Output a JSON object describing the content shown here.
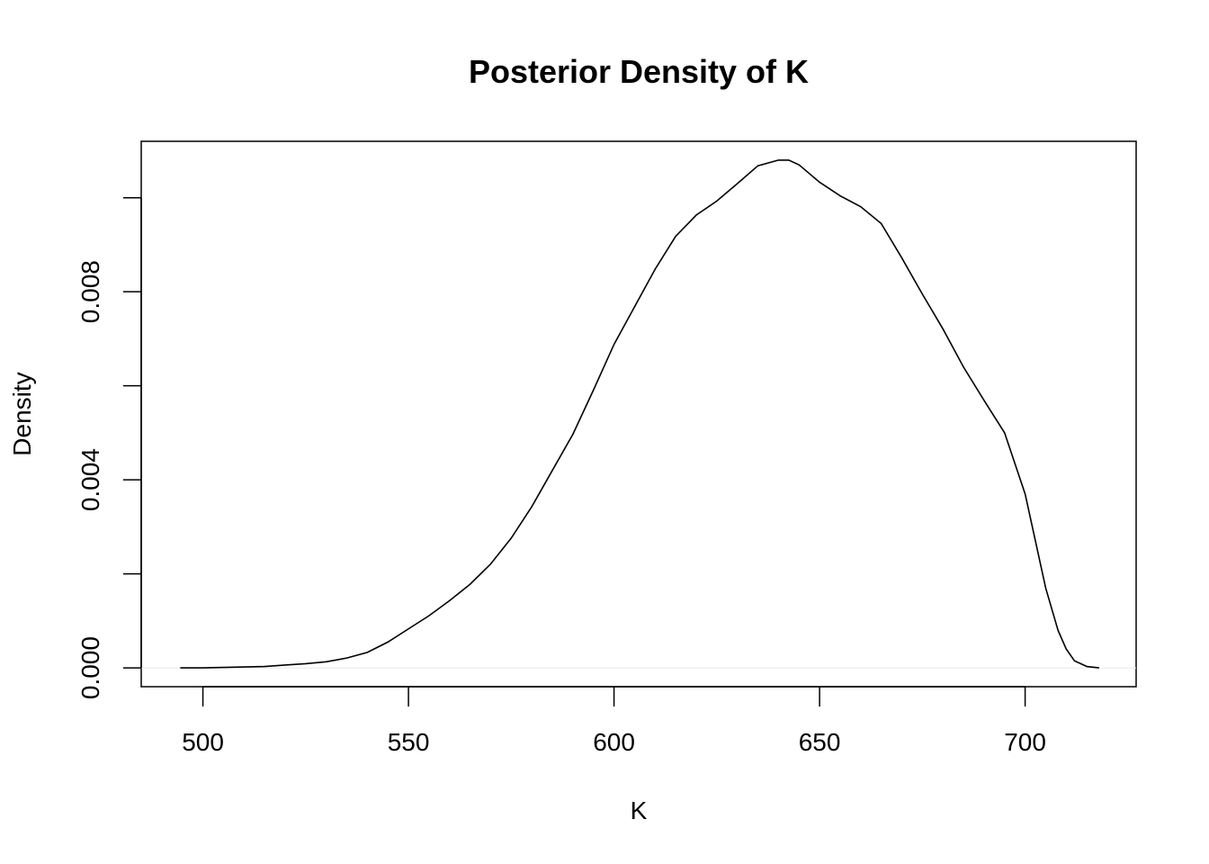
{
  "chart_data": {
    "type": "line",
    "title": "Posterior Density of K",
    "xlabel": "K",
    "ylabel": "Density",
    "xlim": [
      485,
      727
    ],
    "ylim": [
      -0.0004,
      0.0112
    ],
    "x_ticks": [
      500,
      550,
      600,
      650,
      700
    ],
    "x_tick_labels": [
      "500",
      "550",
      "600",
      "650",
      "700"
    ],
    "y_ticks": [
      0.0,
      0.002,
      0.004,
      0.006,
      0.008,
      0.01
    ],
    "y_tick_labels": [
      "0.000",
      "",
      "0.004",
      "",
      "0.008",
      ""
    ],
    "grid": false,
    "series": [
      {
        "x": [
          494.5,
          500,
          505,
          510,
          515,
          520,
          525,
          530,
          535,
          540,
          545,
          550,
          555,
          560,
          565,
          570,
          575,
          580,
          585,
          590,
          595,
          600,
          605,
          610,
          615,
          620,
          625,
          630,
          635,
          640,
          642.5,
          645,
          650,
          655,
          660,
          665,
          670,
          675,
          680,
          685,
          690,
          695,
          700,
          702,
          705,
          708,
          710,
          712,
          715,
          718
        ],
        "y": [
          0.0,
          0.0,
          1e-05,
          2e-05,
          3e-05,
          6e-05,
          9e-05,
          0.00013,
          0.00021,
          0.00033,
          0.00055,
          0.00083,
          0.00111,
          0.00143,
          0.00178,
          0.00221,
          0.00276,
          0.00343,
          0.0042,
          0.00497,
          0.00591,
          0.00688,
          0.00768,
          0.00848,
          0.00918,
          0.00963,
          0.00993,
          0.0103,
          0.01068,
          0.0108,
          0.0108,
          0.0107,
          0.01033,
          0.01004,
          0.00981,
          0.00945,
          0.00872,
          0.00795,
          0.00721,
          0.0064,
          0.00569,
          0.005,
          0.0037,
          0.0029,
          0.0017,
          0.0008,
          0.0004,
          0.00015,
          3e-05,
          0.0
        ]
      }
    ]
  }
}
